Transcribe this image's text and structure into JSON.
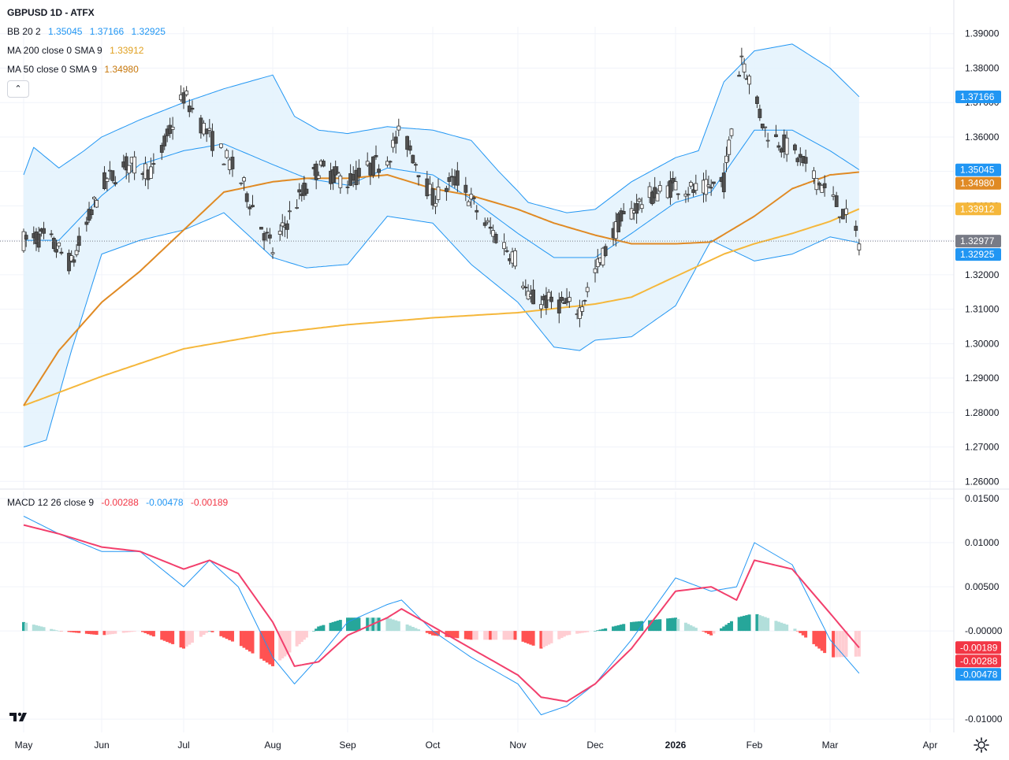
{
  "header": {
    "title": "GBPUSD 1D - ATFX"
  },
  "legend": {
    "bb": {
      "label": "BB 20 2",
      "v1": "1.35045",
      "v2": "1.37166",
      "v3": "1.32925"
    },
    "ma200": {
      "label": "MA 200 close 0 SMA 9",
      "value": "1.33912"
    },
    "ma50": {
      "label": "MA 50 close 0 SMA 9",
      "value": "1.34980"
    },
    "macd": {
      "label": "MACD 12 26 close 9",
      "v1": "-0.00288",
      "v2": "-0.00478",
      "v3": "-0.00189"
    },
    "collapse_icon": "chevron-up"
  },
  "colors": {
    "bb": "#2196f3",
    "bbfill": "#e3f2fd",
    "ma200": "#f5b73b",
    "ma50": "#e08a24",
    "up": "#ffffff",
    "down": "#505050",
    "wick": "#333333",
    "macd_line": "#2196f3",
    "signal_line": "#f23f6c",
    "hist_up_strong": "#26a69a",
    "hist_up_weak": "#b2dfdb",
    "hist_dn_strong": "#ff5252",
    "hist_dn_weak": "#ffcdd2",
    "price_tag_gray": "#787b86",
    "macd_tag_red": "#f23645"
  },
  "price_tags": [
    {
      "text": "1.37166",
      "value": 1.37166,
      "color": "#2196f3"
    },
    {
      "text": "1.35045",
      "value": 1.35045,
      "color": "#2196f3"
    },
    {
      "text": "1.34980",
      "value": 1.3498,
      "color": "#e08a24"
    },
    {
      "text": "1.33912",
      "value": 1.33912,
      "color": "#f5b73b"
    },
    {
      "text": "1.32977",
      "value": 1.32977,
      "color": "#787b86"
    },
    {
      "text": "1.32925",
      "value": 1.32925,
      "color": "#2196f3"
    }
  ],
  "macd_tags": [
    {
      "text": "-0.00189",
      "value": -0.00189,
      "color": "#f23645"
    },
    {
      "text": "-0.00288",
      "value": -0.00288,
      "color": "#f23645"
    },
    {
      "text": "-0.00478",
      "value": -0.00478,
      "color": "#2196f3"
    }
  ],
  "footer": {
    "logo": "tradingview-logo",
    "settings_icon": "gear-icon"
  },
  "chart_data": [
    {
      "type": "line",
      "title": "GBPUSD 1D - ATFX",
      "x_axis_labels": [
        "May",
        "Jun",
        "Jul",
        "Aug",
        "Sep",
        "Oct",
        "Nov",
        "Dec",
        "2026",
        "Feb",
        "Mar",
        "Apr"
      ],
      "y_ticks": [
        "1.39000",
        "1.38000",
        "1.37000",
        "1.36000",
        "1.35000",
        "1.34000",
        "1.33000",
        "1.32000",
        "1.31000",
        "1.30000",
        "1.29000",
        "1.28000",
        "1.27000",
        "1.26000"
      ],
      "ylim": [
        1.258,
        1.392
      ],
      "grid": true,
      "last_price": 1.32977,
      "series": [
        {
          "name": "MA 200 close 0 SMA 9",
          "anchors": [
            [
              "May 1",
              1.282
            ],
            [
              "Jun 1",
              1.2905
            ],
            [
              "Jul 1",
              1.2985
            ],
            [
              "Aug 1",
              1.303
            ],
            [
              "Sep 1",
              1.3055
            ],
            [
              "Oct 1",
              1.3075
            ],
            [
              "Nov 1",
              1.309
            ],
            [
              "Dec 1",
              1.3115
            ],
            [
              "Dec 15",
              1.3135
            ],
            [
              "Jan 1",
              1.3195
            ],
            [
              "Jan 20",
              1.326
            ],
            [
              "Feb 1",
              1.329
            ],
            [
              "Feb 15",
              1.332
            ],
            [
              "Mar 1",
              1.3355
            ],
            [
              "Mar 10",
              1.3391
            ]
          ]
        },
        {
          "name": "MA 50 close 0 SMA 9",
          "anchors": [
            [
              "May 1",
              1.282
            ],
            [
              "May 15",
              1.298
            ],
            [
              "Jun 1",
              1.312
            ],
            [
              "Jun 15",
              1.321
            ],
            [
              "Jul 1",
              1.333
            ],
            [
              "Jul 15",
              1.344
            ],
            [
              "Aug 1",
              1.347
            ],
            [
              "Aug 15",
              1.348
            ],
            [
              "Sep 1",
              1.348
            ],
            [
              "Sep 15",
              1.349
            ],
            [
              "Oct 1",
              1.345
            ],
            [
              "Oct 15",
              1.343
            ],
            [
              "Nov 1",
              1.339
            ],
            [
              "Nov 15",
              1.335
            ],
            [
              "Dec 1",
              1.3315
            ],
            [
              "Dec 15",
              1.329
            ],
            [
              "Jan 1",
              1.329
            ],
            [
              "Jan 15",
              1.3295
            ],
            [
              "Feb 1",
              1.337
            ],
            [
              "Feb 15",
              1.345
            ],
            [
              "Mar 1",
              1.349
            ],
            [
              "Mar 10",
              1.3498
            ]
          ]
        },
        {
          "name": "BB upper",
          "anchors": [
            [
              "May 1",
              1.349
            ],
            [
              "May 5",
              1.357
            ],
            [
              "May 15",
              1.351
            ],
            [
              "May 25",
              1.356
            ],
            [
              "Jun 1",
              1.36
            ],
            [
              "Jun 15",
              1.365
            ],
            [
              "Jul 1",
              1.37
            ],
            [
              "Jul 15",
              1.374
            ],
            [
              "Aug 1",
              1.378
            ],
            [
              "Aug 10",
              1.366
            ],
            [
              "Aug 20",
              1.362
            ],
            [
              "Sep 1",
              1.361
            ],
            [
              "Sep 15",
              1.363
            ],
            [
              "Oct 1",
              1.362
            ],
            [
              "Oct 15",
              1.359
            ],
            [
              "Oct 25",
              1.35
            ],
            [
              "Nov 5",
              1.341
            ],
            [
              "Nov 20",
              1.338
            ],
            [
              "Dec 1",
              1.339
            ],
            [
              "Dec 15",
              1.347
            ],
            [
              "Jan 1",
              1.354
            ],
            [
              "Jan 10",
              1.356
            ],
            [
              "Jan 20",
              1.376
            ],
            [
              "Feb 1",
              1.385
            ],
            [
              "Feb 15",
              1.387
            ],
            [
              "Mar 1",
              1.38
            ],
            [
              "Mar 10",
              1.3717
            ]
          ]
        },
        {
          "name": "BB basis",
          "anchors": [
            [
              "May 1",
              1.33
            ],
            [
              "May 15",
              1.33
            ],
            [
              "Jun 1",
              1.343
            ],
            [
              "Jun 15",
              1.352
            ],
            [
              "Jul 1",
              1.356
            ],
            [
              "Jul 15",
              1.358
            ],
            [
              "Aug 1",
              1.352
            ],
            [
              "Aug 15",
              1.348
            ],
            [
              "Sep 1",
              1.346
            ],
            [
              "Sep 15",
              1.351
            ],
            [
              "Oct 1",
              1.349
            ],
            [
              "Oct 15",
              1.342
            ],
            [
              "Nov 1",
              1.332
            ],
            [
              "Nov 15",
              1.325
            ],
            [
              "Dec 1",
              1.325
            ],
            [
              "Dec 15",
              1.332
            ],
            [
              "Jan 1",
              1.341
            ],
            [
              "Jan 15",
              1.344
            ],
            [
              "Feb 1",
              1.362
            ],
            [
              "Feb 15",
              1.362
            ],
            [
              "Mar 1",
              1.356
            ],
            [
              "Mar 10",
              1.3505
            ]
          ]
        },
        {
          "name": "BB lower",
          "anchors": [
            [
              "May 1",
              1.27
            ],
            [
              "May 10",
              1.272
            ],
            [
              "May 20",
              1.298
            ],
            [
              "Jun 1",
              1.326
            ],
            [
              "Jun 15",
              1.33
            ],
            [
              "Jul 1",
              1.333
            ],
            [
              "Jul 15",
              1.338
            ],
            [
              "Aug 1",
              1.325
            ],
            [
              "Aug 15",
              1.322
            ],
            [
              "Sep 1",
              1.323
            ],
            [
              "Sep 15",
              1.337
            ],
            [
              "Oct 1",
              1.335
            ],
            [
              "Oct 15",
              1.323
            ],
            [
              "Nov 1",
              1.312
            ],
            [
              "Nov 15",
              1.299
            ],
            [
              "Nov 25",
              1.298
            ],
            [
              "Dec 1",
              1.301
            ],
            [
              "Dec 15",
              1.302
            ],
            [
              "Jan 1",
              1.311
            ],
            [
              "Jan 15",
              1.33
            ],
            [
              "Feb 1",
              1.324
            ],
            [
              "Feb 15",
              1.326
            ],
            [
              "Mar 1",
              1.331
            ],
            [
              "Mar 10",
              1.3293
            ]
          ]
        },
        {
          "name": "Price path",
          "anchors": [
            [
              "May 1",
              1.33
            ],
            [
              "May 10",
              1.331
            ],
            [
              "May 20",
              1.323
            ],
            [
              "Jun 1",
              1.346
            ],
            [
              "Jun 10",
              1.352
            ],
            [
              "Jun 20",
              1.35
            ],
            [
              "Jul 1",
              1.372
            ],
            [
              "Jul 10",
              1.36
            ],
            [
              "Jul 20",
              1.349
            ],
            [
              "Aug 1",
              1.327
            ],
            [
              "Aug 10",
              1.34
            ],
            [
              "Aug 20",
              1.351
            ],
            [
              "Sep 1",
              1.347
            ],
            [
              "Sep 15",
              1.354
            ],
            [
              "Sep 20",
              1.362
            ],
            [
              "Oct 1",
              1.342
            ],
            [
              "Oct 10",
              1.348
            ],
            [
              "Oct 20",
              1.335
            ],
            [
              "Nov 1",
              1.324
            ],
            [
              "Nov 5",
              1.313
            ],
            [
              "Nov 15",
              1.312
            ],
            [
              "Nov 25",
              1.31
            ],
            [
              "Dec 1",
              1.321
            ],
            [
              "Dec 10",
              1.335
            ],
            [
              "Dec 20",
              1.342
            ],
            [
              "Jan 1",
              1.346
            ],
            [
              "Jan 10",
              1.344
            ],
            [
              "Jan 20",
              1.347
            ],
            [
              "Jan 27",
              1.384
            ],
            [
              "Feb 5",
              1.362
            ],
            [
              "Feb 15",
              1.356
            ],
            [
              "Mar 1",
              1.343
            ],
            [
              "Mar 5",
              1.338
            ],
            [
              "Mar 10",
              1.3298
            ]
          ]
        }
      ]
    },
    {
      "type": "line",
      "title": "MACD 12 26 close 9",
      "y_ticks": [
        "0.01500",
        "0.01000",
        "0.00500",
        "-0.00000",
        "-0.01000"
      ],
      "ylim": [
        -0.0115,
        0.0158
      ],
      "grid": true,
      "series": [
        {
          "name": "MACD",
          "anchors": [
            [
              "May 1",
              0.013
            ],
            [
              "May 15",
              0.011
            ],
            [
              "Jun 1",
              0.009
            ],
            [
              "Jun 15",
              0.009
            ],
            [
              "Jul 1",
              0.005
            ],
            [
              "Jul 10",
              0.008
            ],
            [
              "Jul 20",
              0.005
            ],
            [
              "Aug 1",
              -0.003
            ],
            [
              "Aug 10",
              -0.006
            ],
            [
              "Aug 20",
              -0.003
            ],
            [
              "Sep 1",
              0.001
            ],
            [
              "Sep 15",
              0.003
            ],
            [
              "Sep 20",
              0.0035
            ],
            [
              "Oct 1",
              0.0
            ],
            [
              "Oct 15",
              -0.003
            ],
            [
              "Nov 1",
              -0.006
            ],
            [
              "Nov 10",
              -0.0095
            ],
            [
              "Nov 20",
              -0.0085
            ],
            [
              "Dec 1",
              -0.006
            ],
            [
              "Dec 15",
              -0.001
            ],
            [
              "Jan 1",
              0.006
            ],
            [
              "Jan 15",
              0.0045
            ],
            [
              "Jan 25",
              0.005
            ],
            [
              "Feb 1",
              0.01
            ],
            [
              "Feb 15",
              0.0075
            ],
            [
              "Mar 1",
              -0.001
            ],
            [
              "Mar 10",
              -0.0048
            ]
          ]
        },
        {
          "name": "Signal",
          "anchors": [
            [
              "May 1",
              0.012
            ],
            [
              "May 15",
              0.011
            ],
            [
              "Jun 1",
              0.0095
            ],
            [
              "Jun 15",
              0.009
            ],
            [
              "Jul 1",
              0.007
            ],
            [
              "Jul 10",
              0.008
            ],
            [
              "Jul 20",
              0.0065
            ],
            [
              "Aug 1",
              0.001
            ],
            [
              "Aug 10",
              -0.004
            ],
            [
              "Aug 20",
              -0.0035
            ],
            [
              "Sep 1",
              -0.0005
            ],
            [
              "Sep 15",
              0.0015
            ],
            [
              "Sep 20",
              0.0025
            ],
            [
              "Oct 1",
              0.0005
            ],
            [
              "Oct 15",
              -0.002
            ],
            [
              "Nov 1",
              -0.005
            ],
            [
              "Nov 10",
              -0.0075
            ],
            [
              "Nov 20",
              -0.008
            ],
            [
              "Dec 1",
              -0.006
            ],
            [
              "Dec 15",
              -0.002
            ],
            [
              "Jan 1",
              0.0045
            ],
            [
              "Jan 15",
              0.005
            ],
            [
              "Jan 25",
              0.0035
            ],
            [
              "Feb 1",
              0.008
            ],
            [
              "Feb 15",
              0.007
            ],
            [
              "Mar 1",
              0.002
            ],
            [
              "Mar 10",
              -0.0019
            ]
          ]
        }
      ]
    }
  ]
}
